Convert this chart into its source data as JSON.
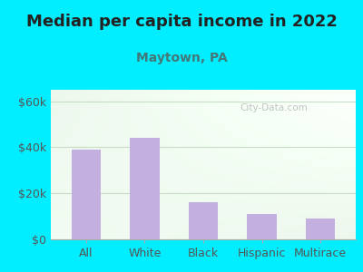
{
  "title": "Median per capita income in 2022",
  "subtitle": "Maytown, PA",
  "categories": [
    "All",
    "White",
    "Black",
    "Hispanic",
    "Multirace"
  ],
  "values": [
    39000,
    44000,
    16000,
    11000,
    9000
  ],
  "bar_color": "#c4b0e0",
  "title_fontsize": 13,
  "subtitle_fontsize": 10,
  "tick_fontsize": 9,
  "ytick_labels": [
    "$0",
    "$20k",
    "$40k",
    "$60k"
  ],
  "ytick_values": [
    0,
    20000,
    40000,
    60000
  ],
  "ylim": [
    0,
    65000
  ],
  "background_outer": "#00eeff",
  "watermark": "City-Data.com",
  "grid_color": "#c8dcc8",
  "title_color": "#222222",
  "subtitle_color": "#447777",
  "tick_color": "#555555"
}
